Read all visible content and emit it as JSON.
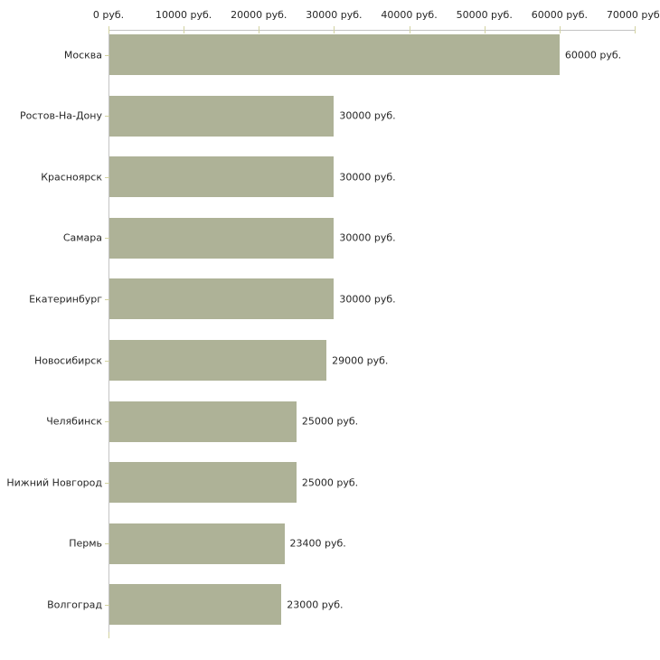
{
  "chart_data": {
    "type": "bar",
    "orientation": "horizontal",
    "title": "",
    "xlabel": "",
    "ylabel": "",
    "grid": "off",
    "legend": "none",
    "categories": [
      "Москва",
      "Ростов-На-Дону",
      "Красноярск",
      "Самара",
      "Екатеринбург",
      "Новосибирск",
      "Челябинск",
      "Нижний Новгород",
      "Пермь",
      "Волгоград"
    ],
    "values": [
      60000,
      30000,
      30000,
      30000,
      30000,
      29000,
      25000,
      25000,
      23400,
      23000
    ],
    "value_labels": [
      "60000 руб.",
      "30000 руб.",
      "30000 руб.",
      "30000 руб.",
      "30000 руб.",
      "29000 руб.",
      "25000 руб.",
      "25000 руб.",
      "23400 руб.",
      "23000 руб."
    ],
    "x_axis": {
      "position": "top",
      "min": 0,
      "max": 70000,
      "unit": "руб.",
      "tick_values": [
        0,
        10000,
        20000,
        30000,
        40000,
        50000,
        60000,
        70000
      ],
      "tick_labels": [
        "0 руб.",
        "10000 руб.",
        "20000 руб.",
        "30000 руб.",
        "40000 руб.",
        "50000 руб.",
        "60000 руб.",
        "70000 руб."
      ]
    }
  },
  "colors": {
    "bar": "#aeb297",
    "axis_line": "#c3c3c3",
    "tick_mark": "#d2d2a0",
    "text": "#262626",
    "background": "#ffffff"
  }
}
